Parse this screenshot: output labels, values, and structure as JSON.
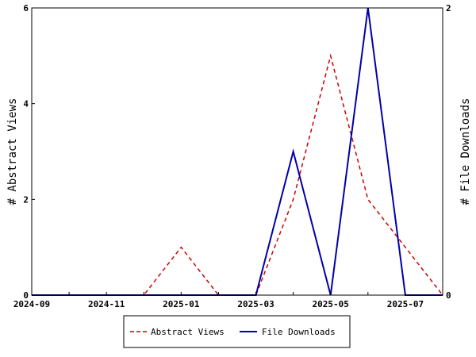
{
  "chart_data": {
    "type": "line",
    "x": [
      "2024-09",
      "2024-10",
      "2024-11",
      "2024-12",
      "2025-01",
      "2025-02",
      "2025-03",
      "2025-04",
      "2025-05",
      "2025-06",
      "2025-07",
      "2025-08"
    ],
    "x_tick_labels": [
      "2024-09",
      "2024-11",
      "2025-01",
      "2025-03",
      "2025-05",
      "2025-07"
    ],
    "xlim": [
      "2024-09",
      "2025-08"
    ],
    "ylabel": "# Abstract Views",
    "y2label": "# File Downloads",
    "ylim": [
      0,
      6
    ],
    "y_ticks": [
      0,
      2,
      4,
      6
    ],
    "y2lim": [
      0,
      2
    ],
    "y2_ticks": [
      0,
      2
    ],
    "legend_position": "bottom",
    "grid": false,
    "series": [
      {
        "name": "Abstract Views",
        "axis": "left",
        "color": "#cc0000",
        "style": "dashed",
        "values": [
          0,
          0,
          0,
          0,
          1,
          0,
          0,
          2,
          5,
          2,
          1,
          0
        ]
      },
      {
        "name": "File Downloads",
        "axis": "right",
        "color": "#0000aa",
        "style": "solid",
        "values": [
          0,
          0,
          0,
          0,
          0,
          0,
          0,
          1,
          0,
          2,
          0,
          0
        ]
      }
    ]
  }
}
